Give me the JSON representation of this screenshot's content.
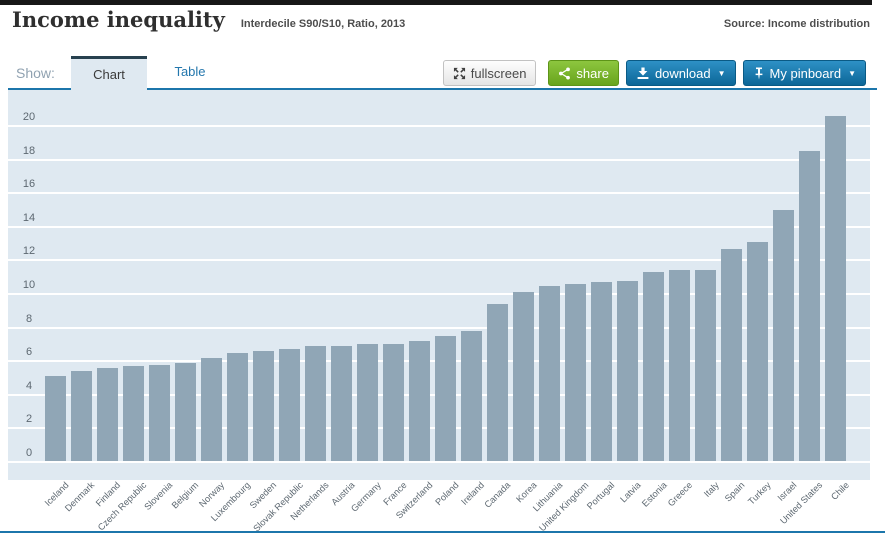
{
  "header": {
    "title": "Income inequality",
    "subtitle": "Interdecile S90/S10, Ratio, 2013",
    "source": "Source: Income distribution"
  },
  "toolbar": {
    "show_label": "Show:",
    "tabs": [
      {
        "label": "Chart",
        "active": true
      },
      {
        "label": "Table",
        "active": false
      }
    ],
    "fullscreen_label": "fullscreen",
    "share_label": "share",
    "download_label": "download",
    "pinboard_label": "My pinboard",
    "caret": "▼",
    "icons": {
      "fullscreen": "expand-arrows-icon",
      "share": "share-nodes-icon",
      "download": "download-arrow-icon",
      "pinboard": "pushpin-icon"
    },
    "colors": {
      "share_green": "#79b52b",
      "action_blue": "#16709f",
      "link_blue": "#2477ad",
      "underline_blue": "#1c76ab"
    }
  },
  "chart_data": {
    "type": "bar",
    "title": "Income inequality",
    "subtitle": "Interdecile S90/S10, Ratio, 2013",
    "year": "2013",
    "measure": "Interdecile S90/S10 ratio",
    "categories": [
      "Iceland",
      "Denmark",
      "Finland",
      "Czech Republic",
      "Slovenia",
      "Belgium",
      "Norway",
      "Luxembourg",
      "Sweden",
      "Slovak Republic",
      "Netherlands",
      "Austria",
      "Germany",
      "France",
      "Switzerland",
      "Poland",
      "Ireland",
      "Canada",
      "Korea",
      "Lithuania",
      "United Kingdom",
      "Portugal",
      "Latvia",
      "Estonia",
      "Greece",
      "Italy",
      "Spain",
      "Turkey",
      "Israel",
      "United States",
      "Chile"
    ],
    "values": [
      5.1,
      5.4,
      5.6,
      5.7,
      5.8,
      5.9,
      6.2,
      6.5,
      6.6,
      6.7,
      6.9,
      6.9,
      7.0,
      7.0,
      7.2,
      7.5,
      7.8,
      9.4,
      10.1,
      10.5,
      10.6,
      10.7,
      10.8,
      11.3,
      11.4,
      11.4,
      12.7,
      13.1,
      15.0,
      18.5,
      20.6
    ],
    "xlabel": "",
    "ylabel": "",
    "ylim": [
      0,
      20
    ],
    "ytick_step": 2,
    "grid": "horizontal",
    "legend": "none",
    "bar_color": "#90a6b6",
    "plot_bg": "#dfe9f1",
    "gridline_color": "#ffffff"
  }
}
